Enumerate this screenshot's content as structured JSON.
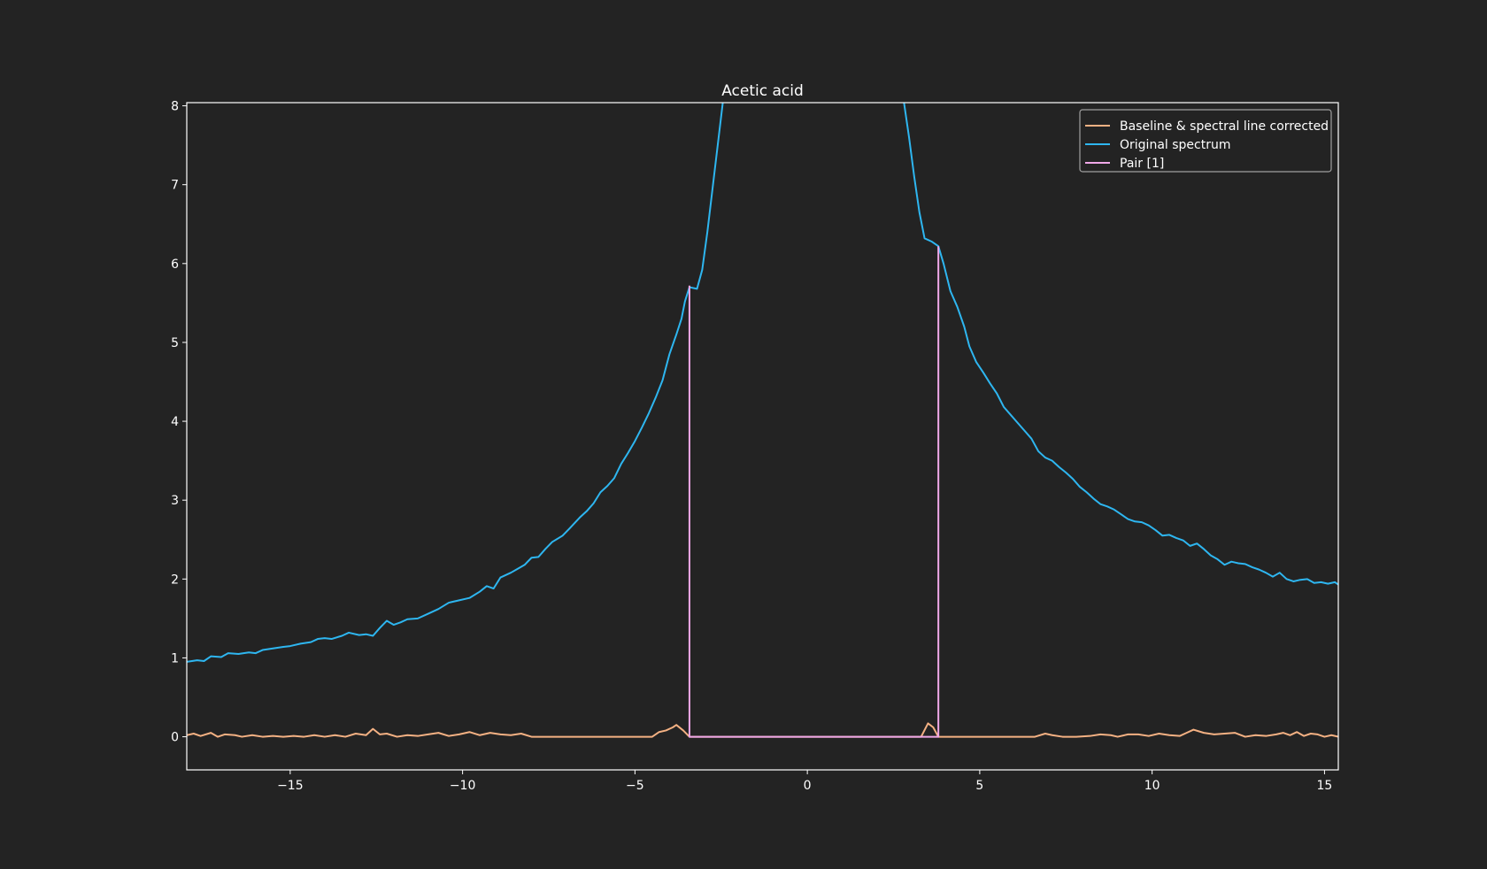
{
  "colors": {
    "background": "#232323",
    "axes": "#ffffff",
    "text": "#ffffff",
    "legend_background": "#232323",
    "legend_border": "#a0a0a0"
  },
  "chart_data": {
    "type": "line",
    "title": "Acetic acid",
    "xlabel": "",
    "ylabel": "",
    "xlim": [
      -18.0,
      15.4
    ],
    "ylim": [
      -0.42,
      8.04
    ],
    "x_ticks": [
      -15,
      -10,
      -5,
      0,
      5,
      10,
      15
    ],
    "x_tick_labels": [
      "−15",
      "−10",
      "−5",
      "0",
      "5",
      "10",
      "15"
    ],
    "y_ticks": [
      0,
      1,
      2,
      3,
      4,
      5,
      6,
      7,
      8
    ],
    "y_tick_labels": [
      "0",
      "1",
      "2",
      "3",
      "4",
      "5",
      "6",
      "7",
      "8"
    ],
    "grid": false,
    "legend": {
      "placement": "top-right",
      "entries": [
        {
          "label": "Baseline & spectral line corrected",
          "color": "#f4b183"
        },
        {
          "label": "Original spectrum",
          "color": "#2eb6f0"
        },
        {
          "label": "Pair [1]",
          "color": "#f0a8e8"
        }
      ]
    },
    "series": [
      {
        "name": "Original spectrum",
        "color": "#2eb6f0",
        "points": [
          [
            -18.0,
            0.95
          ],
          [
            -17.7,
            0.97
          ],
          [
            -17.5,
            0.96
          ],
          [
            -17.3,
            1.02
          ],
          [
            -17.0,
            1.01
          ],
          [
            -16.8,
            1.06
          ],
          [
            -16.5,
            1.05
          ],
          [
            -16.2,
            1.07
          ],
          [
            -16.0,
            1.06
          ],
          [
            -15.8,
            1.1
          ],
          [
            -15.5,
            1.12
          ],
          [
            -15.2,
            1.14
          ],
          [
            -15.0,
            1.15
          ],
          [
            -14.7,
            1.18
          ],
          [
            -14.4,
            1.2
          ],
          [
            -14.2,
            1.24
          ],
          [
            -14.0,
            1.25
          ],
          [
            -13.8,
            1.24
          ],
          [
            -13.5,
            1.28
          ],
          [
            -13.3,
            1.32
          ],
          [
            -13.0,
            1.29
          ],
          [
            -12.8,
            1.3
          ],
          [
            -12.6,
            1.28
          ],
          [
            -12.4,
            1.38
          ],
          [
            -12.2,
            1.47
          ],
          [
            -12.0,
            1.42
          ],
          [
            -11.8,
            1.45
          ],
          [
            -11.6,
            1.49
          ],
          [
            -11.3,
            1.5
          ],
          [
            -11.0,
            1.56
          ],
          [
            -10.7,
            1.62
          ],
          [
            -10.4,
            1.7
          ],
          [
            -10.1,
            1.73
          ],
          [
            -9.8,
            1.76
          ],
          [
            -9.5,
            1.84
          ],
          [
            -9.3,
            1.91
          ],
          [
            -9.1,
            1.88
          ],
          [
            -8.9,
            2.02
          ],
          [
            -8.6,
            2.08
          ],
          [
            -8.4,
            2.13
          ],
          [
            -8.2,
            2.18
          ],
          [
            -8.0,
            2.27
          ],
          [
            -7.8,
            2.28
          ],
          [
            -7.6,
            2.38
          ],
          [
            -7.4,
            2.47
          ],
          [
            -7.1,
            2.55
          ],
          [
            -6.9,
            2.64
          ],
          [
            -6.6,
            2.78
          ],
          [
            -6.4,
            2.86
          ],
          [
            -6.2,
            2.96
          ],
          [
            -6.0,
            3.1
          ],
          [
            -5.8,
            3.18
          ],
          [
            -5.6,
            3.28
          ],
          [
            -5.4,
            3.46
          ],
          [
            -5.2,
            3.6
          ],
          [
            -5.0,
            3.75
          ],
          [
            -4.8,
            3.92
          ],
          [
            -4.6,
            4.1
          ],
          [
            -4.4,
            4.3
          ],
          [
            -4.2,
            4.52
          ],
          [
            -4.0,
            4.85
          ],
          [
            -3.8,
            5.1
          ],
          [
            -3.65,
            5.3
          ],
          [
            -3.55,
            5.52
          ],
          [
            -3.42,
            5.7
          ],
          [
            -3.2,
            5.68
          ],
          [
            -3.05,
            5.92
          ],
          [
            -2.9,
            6.4
          ],
          [
            -2.75,
            6.95
          ],
          [
            -2.6,
            7.5
          ],
          [
            -2.45,
            8.05
          ],
          [
            2.8,
            8.05
          ],
          [
            2.95,
            7.6
          ],
          [
            3.1,
            7.1
          ],
          [
            3.25,
            6.65
          ],
          [
            3.4,
            6.32
          ],
          [
            3.6,
            6.28
          ],
          [
            3.8,
            6.22
          ],
          [
            3.95,
            6.0
          ],
          [
            4.15,
            5.65
          ],
          [
            4.35,
            5.45
          ],
          [
            4.55,
            5.2
          ],
          [
            4.7,
            4.95
          ],
          [
            4.9,
            4.75
          ],
          [
            5.1,
            4.62
          ],
          [
            5.3,
            4.48
          ],
          [
            5.5,
            4.35
          ],
          [
            5.7,
            4.18
          ],
          [
            5.9,
            4.08
          ],
          [
            6.1,
            3.98
          ],
          [
            6.3,
            3.88
          ],
          [
            6.5,
            3.78
          ],
          [
            6.7,
            3.62
          ],
          [
            6.9,
            3.54
          ],
          [
            7.1,
            3.5
          ],
          [
            7.3,
            3.42
          ],
          [
            7.5,
            3.35
          ],
          [
            7.7,
            3.27
          ],
          [
            7.9,
            3.17
          ],
          [
            8.1,
            3.1
          ],
          [
            8.3,
            3.02
          ],
          [
            8.5,
            2.95
          ],
          [
            8.7,
            2.92
          ],
          [
            8.9,
            2.88
          ],
          [
            9.1,
            2.82
          ],
          [
            9.3,
            2.76
          ],
          [
            9.5,
            2.73
          ],
          [
            9.7,
            2.72
          ],
          [
            9.9,
            2.68
          ],
          [
            10.1,
            2.62
          ],
          [
            10.3,
            2.55
          ],
          [
            10.5,
            2.56
          ],
          [
            10.7,
            2.52
          ],
          [
            10.9,
            2.49
          ],
          [
            11.1,
            2.42
          ],
          [
            11.3,
            2.45
          ],
          [
            11.5,
            2.38
          ],
          [
            11.7,
            2.3
          ],
          [
            11.9,
            2.25
          ],
          [
            12.1,
            2.18
          ],
          [
            12.3,
            2.22
          ],
          [
            12.5,
            2.2
          ],
          [
            12.7,
            2.19
          ],
          [
            12.9,
            2.15
          ],
          [
            13.1,
            2.12
          ],
          [
            13.3,
            2.08
          ],
          [
            13.5,
            2.03
          ],
          [
            13.7,
            2.08
          ],
          [
            13.9,
            2.0
          ],
          [
            14.1,
            1.97
          ],
          [
            14.3,
            1.99
          ],
          [
            14.5,
            2.0
          ],
          [
            14.7,
            1.95
          ],
          [
            14.9,
            1.96
          ],
          [
            15.1,
            1.94
          ],
          [
            15.3,
            1.96
          ],
          [
            15.4,
            1.93
          ]
        ]
      },
      {
        "name": "Baseline & spectral line corrected",
        "color": "#f4b183",
        "points": [
          [
            -18.0,
            0.02
          ],
          [
            -17.8,
            0.04
          ],
          [
            -17.6,
            0.01
          ],
          [
            -17.3,
            0.05
          ],
          [
            -17.1,
            0.0
          ],
          [
            -16.9,
            0.03
          ],
          [
            -16.6,
            0.02
          ],
          [
            -16.4,
            0.0
          ],
          [
            -16.1,
            0.02
          ],
          [
            -15.8,
            0.0
          ],
          [
            -15.5,
            0.01
          ],
          [
            -15.2,
            0.0
          ],
          [
            -14.9,
            0.01
          ],
          [
            -14.6,
            0.0
          ],
          [
            -14.3,
            0.02
          ],
          [
            -14.0,
            0.0
          ],
          [
            -13.7,
            0.02
          ],
          [
            -13.4,
            0.0
          ],
          [
            -13.1,
            0.04
          ],
          [
            -12.8,
            0.02
          ],
          [
            -12.6,
            0.1
          ],
          [
            -12.4,
            0.03
          ],
          [
            -12.2,
            0.04
          ],
          [
            -11.9,
            0.0
          ],
          [
            -11.6,
            0.02
          ],
          [
            -11.3,
            0.01
          ],
          [
            -11.0,
            0.03
          ],
          [
            -10.7,
            0.05
          ],
          [
            -10.4,
            0.01
          ],
          [
            -10.1,
            0.03
          ],
          [
            -9.8,
            0.06
          ],
          [
            -9.5,
            0.02
          ],
          [
            -9.2,
            0.05
          ],
          [
            -8.9,
            0.03
          ],
          [
            -8.6,
            0.02
          ],
          [
            -8.3,
            0.04
          ],
          [
            -8.0,
            0.0
          ],
          [
            -7.0,
            0.0
          ],
          [
            -6.0,
            0.0
          ],
          [
            -5.0,
            0.0
          ],
          [
            -4.5,
            0.0
          ],
          [
            -4.3,
            0.06
          ],
          [
            -4.1,
            0.08
          ],
          [
            -3.9,
            0.12
          ],
          [
            -3.8,
            0.15
          ],
          [
            -3.6,
            0.08
          ],
          [
            -3.42,
            0.0
          ],
          [
            0.0,
            0.0
          ],
          [
            3.3,
            0.0
          ],
          [
            3.5,
            0.17
          ],
          [
            3.65,
            0.12
          ],
          [
            3.8,
            0.0
          ],
          [
            5.0,
            0.0
          ],
          [
            6.3,
            0.0
          ],
          [
            6.6,
            0.0
          ],
          [
            6.9,
            0.04
          ],
          [
            7.1,
            0.02
          ],
          [
            7.4,
            0.0
          ],
          [
            7.8,
            0.0
          ],
          [
            8.2,
            0.01
          ],
          [
            8.5,
            0.03
          ],
          [
            8.8,
            0.02
          ],
          [
            9.0,
            0.0
          ],
          [
            9.3,
            0.03
          ],
          [
            9.6,
            0.03
          ],
          [
            9.9,
            0.01
          ],
          [
            10.2,
            0.04
          ],
          [
            10.5,
            0.02
          ],
          [
            10.8,
            0.01
          ],
          [
            11.0,
            0.05
          ],
          [
            11.2,
            0.09
          ],
          [
            11.5,
            0.05
          ],
          [
            11.8,
            0.03
          ],
          [
            12.1,
            0.04
          ],
          [
            12.4,
            0.05
          ],
          [
            12.7,
            0.0
          ],
          [
            13.0,
            0.02
          ],
          [
            13.3,
            0.01
          ],
          [
            13.6,
            0.03
          ],
          [
            13.8,
            0.05
          ],
          [
            14.0,
            0.02
          ],
          [
            14.2,
            0.06
          ],
          [
            14.4,
            0.01
          ],
          [
            14.6,
            0.04
          ],
          [
            14.8,
            0.03
          ],
          [
            15.0,
            0.0
          ],
          [
            15.2,
            0.02
          ],
          [
            15.4,
            0.0
          ]
        ]
      },
      {
        "name": "Pair [1]",
        "color": "#f0a8e8",
        "points": [
          [
            -3.42,
            5.72
          ],
          [
            -3.42,
            0.0
          ],
          [
            3.8,
            0.0
          ],
          [
            3.8,
            6.22
          ]
        ]
      }
    ]
  }
}
